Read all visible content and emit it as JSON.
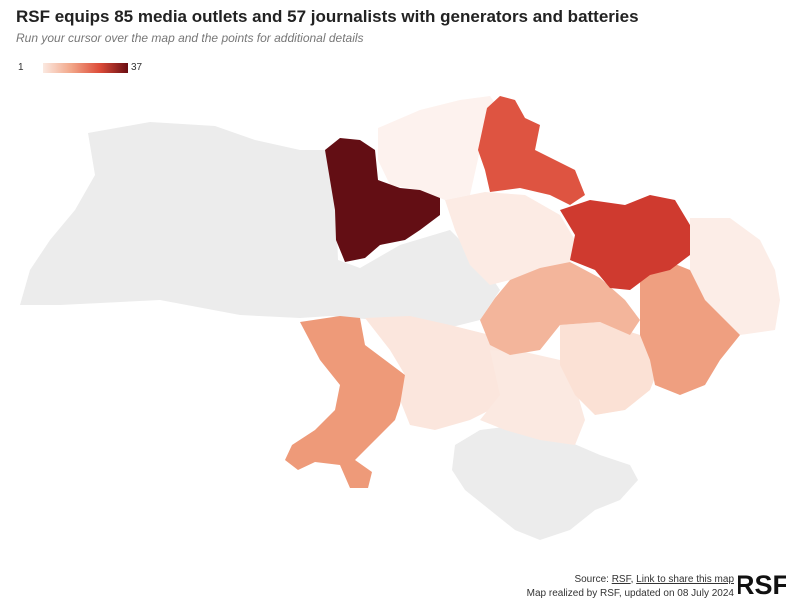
{
  "title": "RSF equips 85 media outlets and 57 journalists with generators and batteries",
  "subtitle": "Run your cursor over the map and the points for additional details",
  "legend": {
    "min": "1",
    "max": "37"
  },
  "colors": {
    "no_data": "#ececec",
    "low": "#fbe9e1",
    "mid": "#f2a688",
    "high": "#dd4c39",
    "max": "#6a0d12"
  },
  "footer": {
    "source_label": "Source:",
    "source_link": "RSF",
    "share_link": "Link to share this map",
    "credit": "Map realized by RSF, updated on 08 July 2024"
  },
  "logo": {
    "text": "RSF"
  }
}
